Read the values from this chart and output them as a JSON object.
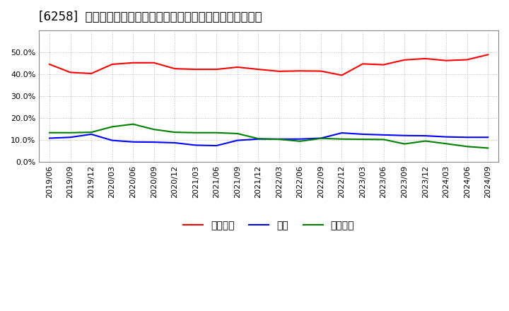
{
  "title": "[6258]  売上債権、在庫、買入債務の総資産に対する比率の推移",
  "x_labels": [
    "2019/06",
    "2019/09",
    "2019/12",
    "2020/03",
    "2020/06",
    "2020/09",
    "2020/12",
    "2021/03",
    "2021/06",
    "2021/09",
    "2021/12",
    "2022/03",
    "2022/06",
    "2022/09",
    "2022/12",
    "2023/03",
    "2023/06",
    "2023/09",
    "2023/12",
    "2024/03",
    "2024/06",
    "2024/09"
  ],
  "receivables": [
    0.445,
    0.408,
    0.403,
    0.445,
    0.452,
    0.452,
    0.425,
    0.422,
    0.422,
    0.432,
    0.422,
    0.413,
    0.415,
    0.414,
    0.395,
    0.447,
    0.443,
    0.465,
    0.471,
    0.462,
    0.466,
    0.489
  ],
  "inventory": [
    0.108,
    0.112,
    0.126,
    0.098,
    0.091,
    0.09,
    0.087,
    0.076,
    0.074,
    0.098,
    0.104,
    0.104,
    0.104,
    0.108,
    0.132,
    0.126,
    0.123,
    0.12,
    0.119,
    0.114,
    0.112,
    0.112
  ],
  "payables": [
    0.133,
    0.133,
    0.135,
    0.16,
    0.172,
    0.148,
    0.135,
    0.133,
    0.133,
    0.129,
    0.106,
    0.103,
    0.094,
    0.107,
    0.104,
    0.103,
    0.102,
    0.082,
    0.095,
    0.083,
    0.07,
    0.063
  ],
  "receivables_color": "#ff0000",
  "inventory_color": "#0000ff",
  "payables_color": "#008000",
  "background_color": "#ffffff",
  "plot_bg_color": "#ffffff",
  "grid_color": "#999999",
  "ylim": [
    0.0,
    0.6
  ],
  "yticks": [
    0.0,
    0.1,
    0.2,
    0.3,
    0.4,
    0.5
  ],
  "legend_labels": [
    "売上債権",
    "在庫",
    "買入債務"
  ],
  "title_fontsize": 12,
  "tick_fontsize": 8,
  "legend_fontsize": 10
}
